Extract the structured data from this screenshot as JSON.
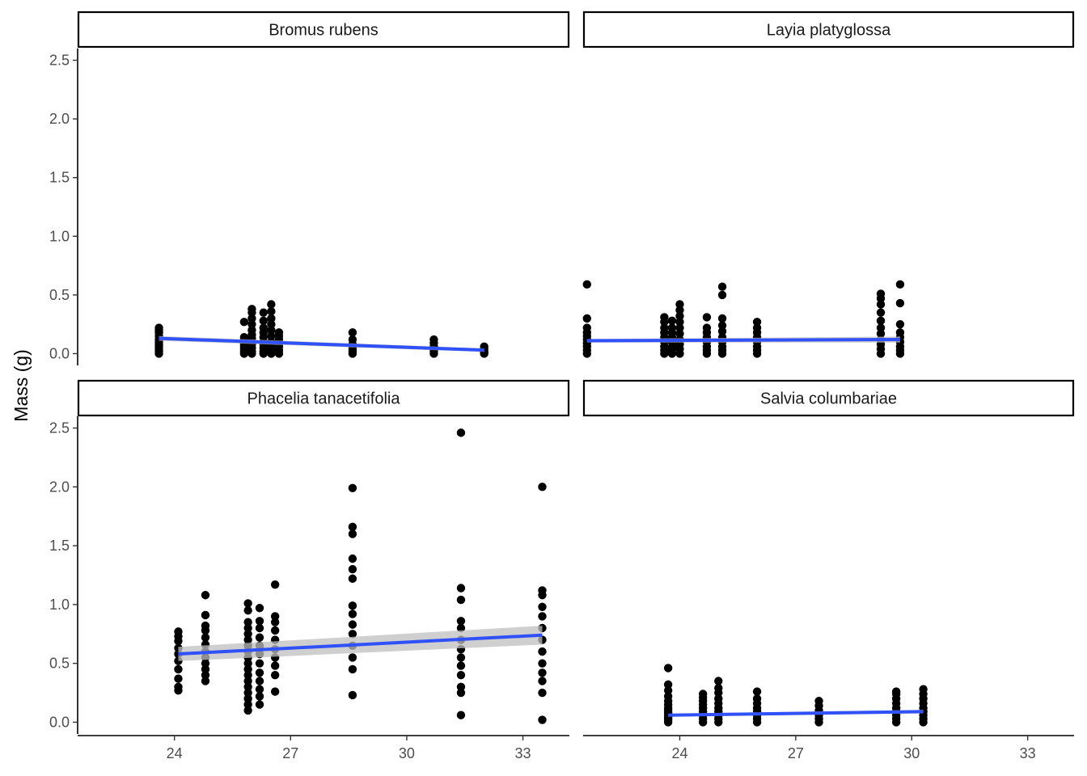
{
  "chart_data": {
    "type": "scatter",
    "ylabel": "Mass (g)",
    "xlabel": "",
    "xlim": [
      21.5,
      34.2
    ],
    "ylim": [
      -0.1,
      2.6
    ],
    "x_ticks": [
      24,
      27,
      30,
      33
    ],
    "y_ticks": [
      0.0,
      0.5,
      1.0,
      1.5,
      2.0,
      2.5
    ],
    "y_tick_labels": [
      "0.0",
      "0.5",
      "1.0",
      "1.5",
      "2.0",
      "2.5"
    ],
    "grid": false,
    "colors": {
      "points": "#000000",
      "fit_line": "#3050f8",
      "ribbon": "#bfbfbf"
    },
    "panels": [
      {
        "title": "Bromus rubens",
        "points": [
          {
            "x": 23.6,
            "y": [
              0.0,
              0.02,
              0.04,
              0.06,
              0.08,
              0.1,
              0.12,
              0.15,
              0.18,
              0.2,
              0.22
            ]
          },
          {
            "x": 25.8,
            "y": [
              0.0,
              0.02,
              0.04,
              0.06,
              0.08,
              0.1,
              0.12,
              0.14,
              0.27
            ]
          },
          {
            "x": 26.0,
            "y": [
              0.0,
              0.02,
              0.05,
              0.08,
              0.1,
              0.13,
              0.16,
              0.2,
              0.25,
              0.3,
              0.35,
              0.38
            ]
          },
          {
            "x": 26.3,
            "y": [
              0.0,
              0.02,
              0.05,
              0.08,
              0.1,
              0.14,
              0.18,
              0.22,
              0.28,
              0.35
            ]
          },
          {
            "x": 26.5,
            "y": [
              0.0,
              0.03,
              0.06,
              0.1,
              0.15,
              0.2,
              0.25,
              0.3,
              0.36,
              0.42
            ]
          },
          {
            "x": 26.7,
            "y": [
              0.0,
              0.03,
              0.06,
              0.09,
              0.12,
              0.15,
              0.18
            ]
          },
          {
            "x": 28.6,
            "y": [
              0.0,
              0.02,
              0.04,
              0.06,
              0.08,
              0.12,
              0.18
            ]
          },
          {
            "x": 30.7,
            "y": [
              0.0,
              0.02,
              0.04,
              0.06,
              0.09,
              0.12
            ]
          },
          {
            "x": 32.0,
            "y": [
              0.0,
              0.01,
              0.02,
              0.04,
              0.06
            ]
          }
        ],
        "fit": {
          "x": [
            23.6,
            32.0
          ],
          "y": [
            0.13,
            0.03
          ],
          "se": [
            0.02,
            0.015
          ]
        }
      },
      {
        "title": "Layia platyglossa",
        "points": [
          {
            "x": 21.6,
            "y": [
              0.0,
              0.03,
              0.06,
              0.09,
              0.12,
              0.15,
              0.18,
              0.22,
              0.3,
              0.59
            ]
          },
          {
            "x": 23.6,
            "y": [
              0.0,
              0.03,
              0.06,
              0.1,
              0.14,
              0.18,
              0.22,
              0.27,
              0.31
            ]
          },
          {
            "x": 23.8,
            "y": [
              0.0,
              0.03,
              0.06,
              0.1,
              0.14,
              0.18,
              0.22,
              0.28
            ]
          },
          {
            "x": 24.0,
            "y": [
              0.0,
              0.04,
              0.08,
              0.12,
              0.17,
              0.22,
              0.27,
              0.32,
              0.37,
              0.42
            ]
          },
          {
            "x": 24.7,
            "y": [
              0.0,
              0.03,
              0.06,
              0.1,
              0.14,
              0.18,
              0.22,
              0.31
            ]
          },
          {
            "x": 25.1,
            "y": [
              0.0,
              0.03,
              0.06,
              0.1,
              0.14,
              0.19,
              0.24,
              0.3,
              0.5,
              0.57
            ]
          },
          {
            "x": 26.0,
            "y": [
              0.0,
              0.03,
              0.06,
              0.1,
              0.14,
              0.18,
              0.22,
              0.27
            ]
          },
          {
            "x": 29.2,
            "y": [
              0.0,
              0.04,
              0.08,
              0.12,
              0.17,
              0.22,
              0.28,
              0.35,
              0.42,
              0.47,
              0.51
            ]
          },
          {
            "x": 29.7,
            "y": [
              0.0,
              0.03,
              0.06,
              0.1,
              0.14,
              0.18,
              0.25,
              0.43,
              0.59
            ]
          }
        ],
        "fit": {
          "x": [
            21.6,
            29.7
          ],
          "y": [
            0.11,
            0.12
          ],
          "se": [
            0.015,
            0.025
          ]
        }
      },
      {
        "title": "Phacelia tanacetifolia",
        "points": [
          {
            "x": 24.1,
            "y": [
              0.27,
              0.3,
              0.37,
              0.45,
              0.52,
              0.58,
              0.63,
              0.69,
              0.73,
              0.77
            ]
          },
          {
            "x": 24.8,
            "y": [
              0.35,
              0.4,
              0.45,
              0.5,
              0.55,
              0.6,
              0.66,
              0.72,
              0.78,
              0.82,
              0.91,
              1.08
            ]
          },
          {
            "x": 25.9,
            "y": [
              0.1,
              0.15,
              0.2,
              0.25,
              0.3,
              0.35,
              0.4,
              0.45,
              0.5,
              0.55,
              0.6,
              0.65,
              0.7,
              0.75,
              0.8,
              0.85,
              0.95,
              1.01
            ]
          },
          {
            "x": 26.2,
            "y": [
              0.15,
              0.22,
              0.28,
              0.35,
              0.42,
              0.5,
              0.58,
              0.65,
              0.72,
              0.8,
              0.86,
              0.97
            ]
          },
          {
            "x": 26.6,
            "y": [
              0.26,
              0.4,
              0.48,
              0.55,
              0.62,
              0.7,
              0.78,
              0.85,
              0.9,
              1.17
            ]
          },
          {
            "x": 28.6,
            "y": [
              0.23,
              0.45,
              0.55,
              0.65,
              0.75,
              0.83,
              0.92,
              0.99,
              1.22,
              1.3,
              1.39,
              1.6,
              1.66,
              1.99
            ]
          },
          {
            "x": 31.4,
            "y": [
              0.06,
              0.25,
              0.3,
              0.4,
              0.48,
              0.55,
              0.62,
              0.7,
              0.8,
              0.86,
              1.04,
              1.14,
              2.46
            ]
          },
          {
            "x": 33.5,
            "y": [
              0.02,
              0.25,
              0.35,
              0.42,
              0.5,
              0.6,
              0.7,
              0.8,
              0.9,
              0.98,
              1.08,
              1.12,
              2.0
            ]
          }
        ],
        "fit": {
          "x": [
            24.1,
            33.5
          ],
          "y": [
            0.58,
            0.74
          ],
          "se": [
            0.06,
            0.08
          ]
        }
      },
      {
        "title": "Salvia columbariae",
        "points": [
          {
            "x": 23.7,
            "y": [
              0.0,
              0.02,
              0.04,
              0.06,
              0.08,
              0.1,
              0.12,
              0.15,
              0.18,
              0.22,
              0.27,
              0.32,
              0.46
            ]
          },
          {
            "x": 24.6,
            "y": [
              0.0,
              0.03,
              0.06,
              0.09,
              0.12,
              0.15,
              0.18,
              0.21,
              0.24
            ]
          },
          {
            "x": 25.0,
            "y": [
              0.0,
              0.03,
              0.06,
              0.09,
              0.12,
              0.16,
              0.2,
              0.25,
              0.29,
              0.35
            ]
          },
          {
            "x": 26.0,
            "y": [
              0.0,
              0.03,
              0.06,
              0.09,
              0.12,
              0.16,
              0.2,
              0.26
            ]
          },
          {
            "x": 27.6,
            "y": [
              0.0,
              0.03,
              0.06,
              0.1,
              0.14,
              0.18
            ]
          },
          {
            "x": 29.6,
            "y": [
              0.0,
              0.03,
              0.06,
              0.09,
              0.12,
              0.16,
              0.2,
              0.24,
              0.26
            ]
          },
          {
            "x": 30.3,
            "y": [
              0.0,
              0.03,
              0.06,
              0.09,
              0.12,
              0.16,
              0.2,
              0.24,
              0.28
            ]
          }
        ],
        "fit": {
          "x": [
            23.7,
            30.3
          ],
          "y": [
            0.06,
            0.09
          ],
          "se": [
            0.012,
            0.015
          ]
        }
      }
    ]
  }
}
